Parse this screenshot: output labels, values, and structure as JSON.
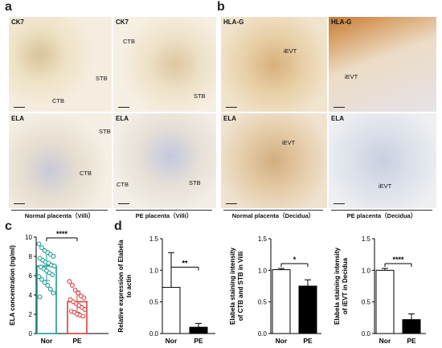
{
  "panels": {
    "a": {
      "letter": "a",
      "images": [
        {
          "title": "CK7",
          "labels": [
            "STB",
            "CTB"
          ]
        },
        {
          "title": "CK7",
          "labels": [
            "CTB",
            "STB"
          ]
        },
        {
          "title": "ELA",
          "labels": [
            "STB",
            "CTB"
          ]
        },
        {
          "title": "ELA",
          "labels": [
            "CTB",
            "STB"
          ]
        }
      ],
      "captions": [
        "Normal placenta（Villi）",
        "PE placenta（Villi）"
      ]
    },
    "b": {
      "letter": "b",
      "images": [
        {
          "title": "HLA-G",
          "labels": [
            "iEVT"
          ]
        },
        {
          "title": "HLA-G",
          "labels": [
            "iEVT"
          ]
        },
        {
          "title": "ELA",
          "labels": [
            "iEVT"
          ]
        },
        {
          "title": "ELA",
          "labels": [
            "iEVT"
          ]
        }
      ],
      "captions": [
        "Normal placenta（Decidua）",
        "PE placenta（Decidua）"
      ]
    },
    "c": {
      "letter": "c"
    },
    "d": {
      "letter": "d"
    }
  },
  "chart_data": [
    {
      "type": "bar",
      "id": "c",
      "categories": [
        "Nor",
        "PE"
      ],
      "values": [
        7.0,
        3.3
      ],
      "errors": [
        1.5,
        1.1
      ],
      "ylabel": "ELA concentration (ng/ml)",
      "ylim": [
        0,
        10
      ],
      "yticks": [
        "0",
        "2",
        "4",
        "6",
        "8",
        "10"
      ],
      "significance": "****",
      "colors": [
        "#1a9e8f",
        "#d9403a"
      ],
      "points": [
        [
          9.3,
          8.9,
          8.6,
          8.4,
          8.2,
          8.0,
          7.8,
          7.6,
          7.4,
          7.3,
          7.1,
          7.0,
          6.9,
          6.7,
          6.5,
          6.3,
          6.1,
          5.9,
          5.6,
          5.3,
          5.0,
          4.6,
          4.2,
          3.8
        ],
        [
          5.4,
          5.0,
          4.5,
          4.2,
          3.9,
          3.7,
          3.5,
          3.3,
          3.1,
          2.9,
          2.7,
          2.5,
          2.3,
          2.2,
          2.0,
          1.9,
          1.8
        ]
      ]
    },
    {
      "type": "bar",
      "id": "d1",
      "categories": [
        "Nor",
        "PE"
      ],
      "values": [
        0.73,
        0.1
      ],
      "errors": [
        0.55,
        0.06
      ],
      "ylabel": "Relative expression of Elabela to actin",
      "ylim": [
        0,
        1.5
      ],
      "yticks": [
        "0.0",
        "0.5",
        "1.0",
        "1.5"
      ],
      "significance": "**"
    },
    {
      "type": "bar",
      "id": "d2",
      "categories": [
        "Nor",
        "PE"
      ],
      "values": [
        1.01,
        0.75
      ],
      "errors": [
        0.02,
        0.1
      ],
      "ylabel": "Elabela staining intensity of CTB and STB in Villi",
      "ylim": [
        0,
        1.5
      ],
      "yticks": [
        "0.0",
        "0.5",
        "1.0",
        "1.5"
      ],
      "significance": "*"
    },
    {
      "type": "bar",
      "id": "d3",
      "categories": [
        "Nor",
        "PE"
      ],
      "values": [
        1.0,
        0.22
      ],
      "errors": [
        0.03,
        0.09
      ],
      "ylabel": "Elabela staining intensity of iEVT in Decidua",
      "ylim": [
        0,
        1.5
      ],
      "yticks": [
        "0.0",
        "0.5",
        "1.0",
        "1.5"
      ],
      "significance": "****"
    }
  ]
}
